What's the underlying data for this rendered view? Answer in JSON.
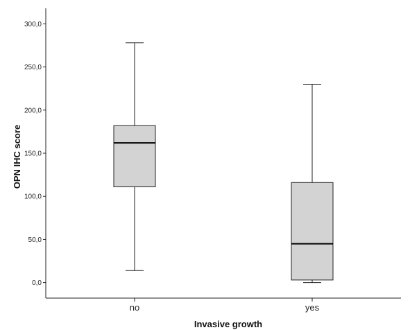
{
  "chart_data": {
    "type": "boxplot",
    "xlabel": "Invasive growth",
    "ylabel": "OPN IHC score",
    "ylim": [
      -18,
      318
    ],
    "yticks": [
      0,
      50,
      100,
      150,
      200,
      250,
      300
    ],
    "ytick_labels": [
      "0,0",
      "50,0",
      "100,0",
      "150,0",
      "200,0",
      "250,0",
      "300,0"
    ],
    "categories": [
      "no",
      "yes"
    ],
    "boxes": [
      {
        "category": "no",
        "min": 14,
        "q1": 111,
        "median": 162,
        "q3": 182,
        "max": 278
      },
      {
        "category": "yes",
        "min": 0,
        "q1": 3,
        "median": 45,
        "q3": 116,
        "max": 230
      }
    ],
    "grid": false,
    "colors": {
      "box_fill": "#d3d3d3",
      "line": "#222222"
    }
  }
}
